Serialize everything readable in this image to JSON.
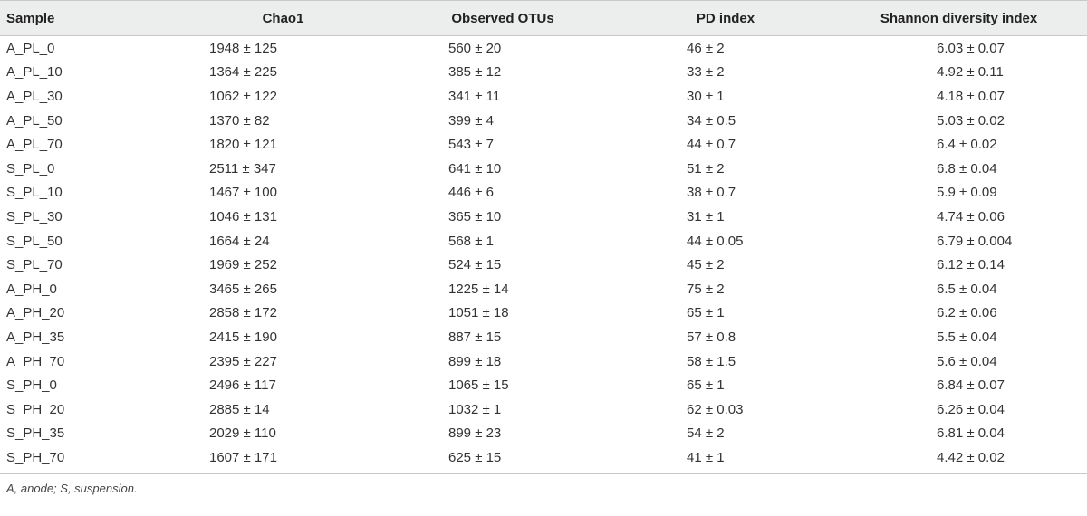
{
  "table": {
    "headers": [
      "Sample",
      "Chao1",
      "Observed OTUs",
      "PD index",
      "Shannon diversity index"
    ],
    "rows": [
      [
        "A_PL_0",
        "1948 ± 125",
        "560 ± 20",
        "46 ± 2",
        "6.03 ± 0.07"
      ],
      [
        "A_PL_10",
        "1364 ± 225",
        "385 ± 12",
        "33 ± 2",
        "4.92 ± 0.11"
      ],
      [
        "A_PL_30",
        "1062 ± 122",
        "341 ± 11",
        "30 ± 1",
        "4.18 ± 0.07"
      ],
      [
        "A_PL_50",
        "1370 ± 82",
        "399 ± 4",
        "34 ± 0.5",
        "5.03 ± 0.02"
      ],
      [
        "A_PL_70",
        "1820 ± 121",
        "543 ± 7",
        "44 ± 0.7",
        "6.4 ± 0.02"
      ],
      [
        "S_PL_0",
        "2511 ± 347",
        "641 ± 10",
        "51 ± 2",
        "6.8 ± 0.04"
      ],
      [
        "S_PL_10",
        "1467 ± 100",
        "446 ± 6",
        "38 ± 0.7",
        "5.9 ± 0.09"
      ],
      [
        "S_PL_30",
        "1046 ± 131",
        "365 ± 10",
        "31 ± 1",
        "4.74 ± 0.06"
      ],
      [
        "S_PL_50",
        "1664 ± 24",
        "568 ± 1",
        "44 ± 0.05",
        "6.79 ± 0.004"
      ],
      [
        "S_PL_70",
        "1969 ± 252",
        "524 ± 15",
        "45 ± 2",
        "6.12 ± 0.14"
      ],
      [
        "A_PH_0",
        "3465 ± 265",
        "1225 ± 14",
        "75 ± 2",
        "6.5 ± 0.04"
      ],
      [
        "A_PH_20",
        "2858 ± 172",
        "1051 ± 18",
        "65 ± 1",
        "6.2 ± 0.06"
      ],
      [
        "A_PH_35",
        "2415 ± 190",
        "887 ± 15",
        "57 ± 0.8",
        "5.5 ± 0.04"
      ],
      [
        "A_PH_70",
        "2395 ± 227",
        "899 ± 18",
        "58 ± 1.5",
        "5.6 ± 0.04"
      ],
      [
        "S_PH_0",
        "2496 ± 117",
        "1065 ± 15",
        "65 ± 1",
        "6.84 ± 0.07"
      ],
      [
        "S_PH_20",
        "2885 ± 14",
        "1032 ± 1",
        "62 ± 0.03",
        "6.26 ± 0.04"
      ],
      [
        "S_PH_35",
        "2029 ± 110",
        "899 ± 23",
        "54 ± 2",
        "6.81 ± 0.04"
      ],
      [
        "S_PH_70",
        "1607 ± 171",
        "625 ± 15",
        "41 ± 1",
        "4.42 ± 0.02"
      ]
    ]
  },
  "footnote": "A, anode; S, suspension."
}
